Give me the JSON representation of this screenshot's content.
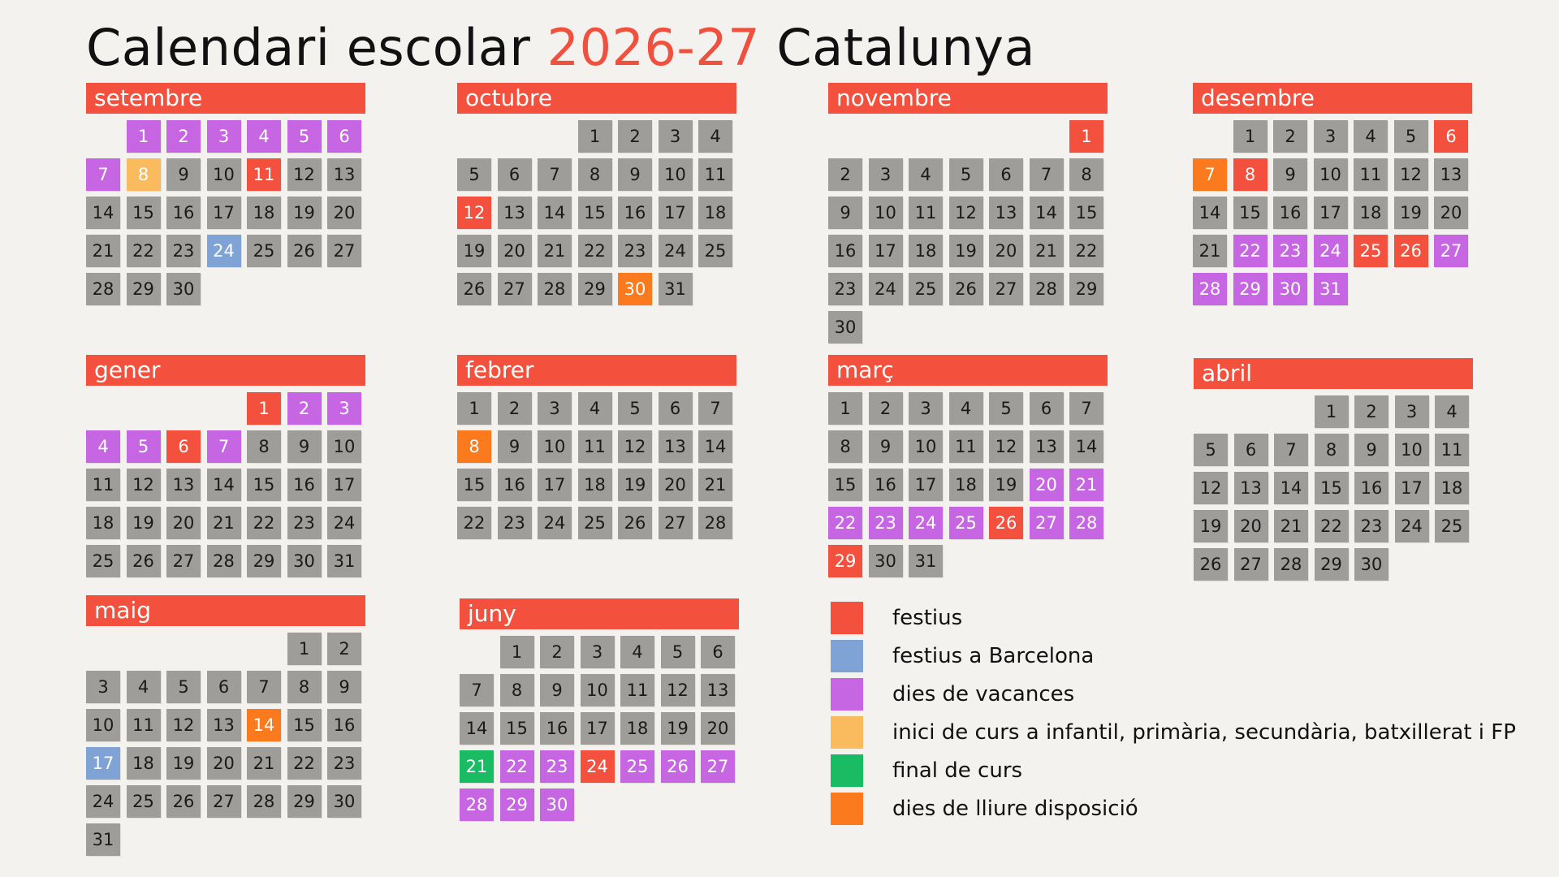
{
  "title": {
    "prefix": "Calendari escolar",
    "years": "2026-27",
    "suffix": "Catalunya"
  },
  "colors": {
    "festiu": "#f4503e",
    "festiu_bcn": "#7ea3d4",
    "vacances": "#c766e2",
    "inici": "#f9bb5e",
    "final": "#19bb63",
    "lliure": "#fa7a1d",
    "normal": "#9e9d9a"
  },
  "months": [
    {
      "name": "setembre",
      "days_in_month": 30,
      "start_weekday": 1,
      "festius": [
        11
      ],
      "festius_bcn": [
        24
      ],
      "vacances": [
        1,
        2,
        3,
        4,
        5,
        6,
        7
      ],
      "inici": [
        8
      ],
      "final": [],
      "lliure": []
    },
    {
      "name": "octubre",
      "days_in_month": 31,
      "start_weekday": 3,
      "festius": [
        12
      ],
      "festius_bcn": [],
      "vacances": [],
      "inici": [],
      "final": [],
      "lliure": [
        30
      ]
    },
    {
      "name": "novembre",
      "days_in_month": 30,
      "start_weekday": 6,
      "festius": [
        1
      ],
      "festius_bcn": [],
      "vacances": [],
      "inici": [],
      "final": [],
      "lliure": []
    },
    {
      "name": "desembre",
      "days_in_month": 31,
      "start_weekday": 1,
      "festius": [
        6,
        8,
        25,
        26
      ],
      "festius_bcn": [],
      "vacances": [
        22,
        23,
        24,
        27,
        28,
        29,
        30,
        31
      ],
      "inici": [],
      "final": [],
      "lliure": [
        7
      ]
    },
    {
      "name": "gener",
      "days_in_month": 31,
      "start_weekday": 4,
      "festius": [
        1,
        6
      ],
      "festius_bcn": [],
      "vacances": [
        2,
        3,
        4,
        5,
        7
      ],
      "inici": [],
      "final": [],
      "lliure": []
    },
    {
      "name": "febrer",
      "days_in_month": 28,
      "start_weekday": 0,
      "festius": [],
      "festius_bcn": [],
      "vacances": [],
      "inici": [],
      "final": [],
      "lliure": [
        8
      ]
    },
    {
      "name": "març",
      "days_in_month": 31,
      "start_weekday": 0,
      "festius": [
        26,
        29
      ],
      "festius_bcn": [],
      "vacances": [
        20,
        21,
        22,
        23,
        24,
        25,
        27,
        28
      ],
      "inici": [],
      "final": [],
      "lliure": []
    },
    {
      "name": "abril",
      "days_in_month": 30,
      "start_weekday": 3,
      "festius": [],
      "festius_bcn": [],
      "vacances": [],
      "inici": [],
      "final": [],
      "lliure": []
    },
    {
      "name": "maig",
      "days_in_month": 31,
      "start_weekday": 5,
      "festius": [],
      "festius_bcn": [
        17
      ],
      "vacances": [],
      "inici": [],
      "final": [],
      "lliure": [
        14
      ]
    },
    {
      "name": "juny",
      "days_in_month": 30,
      "start_weekday": 1,
      "festius": [
        24
      ],
      "festius_bcn": [],
      "vacances": [
        22,
        23,
        25,
        26,
        27,
        28,
        29,
        30
      ],
      "inici": [],
      "final": [
        21
      ],
      "lliure": []
    }
  ],
  "legend": [
    {
      "key": "festiu",
      "label": "festius"
    },
    {
      "key": "festiu_bcn",
      "label": "festius a Barcelona"
    },
    {
      "key": "vacances",
      "label": "dies de vacances"
    },
    {
      "key": "inici",
      "label": "inici de curs a infantil, primària, secundària, batxillerat i FP"
    },
    {
      "key": "final",
      "label": "final de curs"
    },
    {
      "key": "lliure",
      "label": "dies de lliure disposició"
    }
  ]
}
